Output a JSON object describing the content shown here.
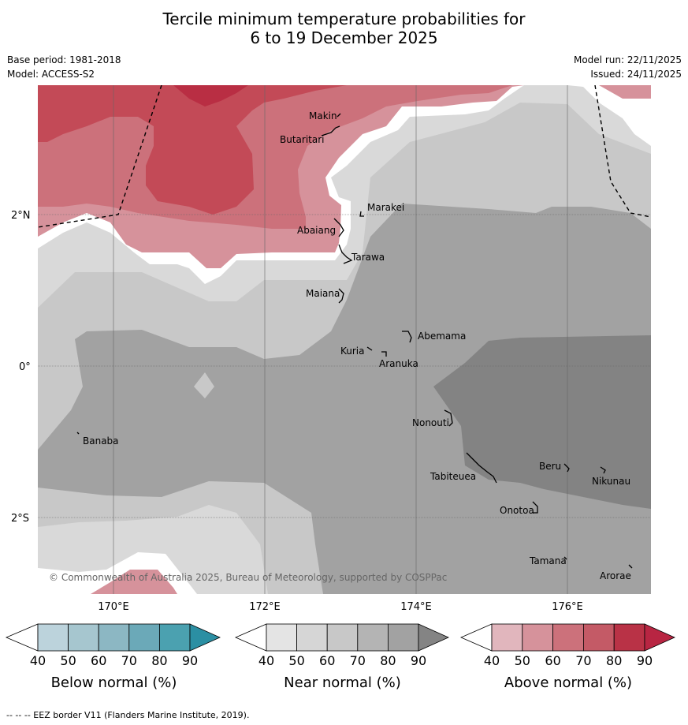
{
  "title_line1": "Tercile minimum temperature probabilities for",
  "title_line2": "6 to 19 December 2025",
  "base_period": "Base period: 1981-2018",
  "model": "Model: ACCESS-S2",
  "model_run": "Model run: 22/11/2025",
  "issued": "Issued: 24/11/2025",
  "copyright": "© Commonwealth of Australia 2025, Bureau of Meteorology, supported by COSPPac",
  "footer": "--  --  -- EEZ border V11 (Flanders Marine Institute, 2019).",
  "lat_labels": [
    "2°N",
    "0°",
    "2°S"
  ],
  "lon_labels": [
    "170°E",
    "172°E",
    "174°E",
    "176°E"
  ],
  "places": [
    "Makin",
    "Butaritari",
    "Marakei",
    "Abaiang",
    "Tarawa",
    "Maiana",
    "Abemama",
    "Kuria",
    "Aranuka",
    "Nonouti",
    "Banaba",
    "Tabiteuea",
    "Beru",
    "Nikunau",
    "Onotoa",
    "Tamana",
    "Arorae"
  ],
  "legends": [
    {
      "title": "Below normal (%)",
      "ticks": [
        "40",
        "50",
        "60",
        "70",
        "80",
        "90"
      ],
      "colors": [
        "#ffffff",
        "#bcd3dc",
        "#a6c6cf",
        "#8cb7c3",
        "#6ba9b8",
        "#4ba1b0",
        "#2b8fa3"
      ]
    },
    {
      "title": "Near normal (%)",
      "ticks": [
        "40",
        "50",
        "60",
        "70",
        "80",
        "90"
      ],
      "colors": [
        "#ffffff",
        "#e4e4e4",
        "#d6d6d6",
        "#c8c8c8",
        "#b4b4b4",
        "#a2a2a2",
        "#848484"
      ]
    },
    {
      "title": "Above normal (%)",
      "ticks": [
        "40",
        "50",
        "60",
        "70",
        "80",
        "90"
      ],
      "colors": [
        "#ffffff",
        "#e1b6bd",
        "#d6929b",
        "#cc717b",
        "#c45a66",
        "#b93246",
        "#b82542"
      ]
    }
  ],
  "palette": {
    "white_gap": "#ffffff",
    "near_50": "#d9d9d9",
    "near_60": "#c8c8c8",
    "near_70": "#a2a2a2",
    "near_80": "#838383",
    "above_50": "#d6929b",
    "above_60": "#cc717b",
    "above_70": "#c34a57",
    "above_80": "#b92e43"
  }
}
